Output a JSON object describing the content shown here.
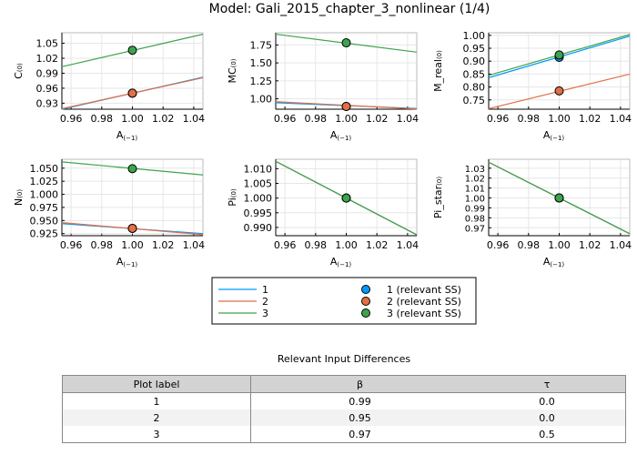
{
  "title": "Model: Gali_2015_chapter_3_nonlinear  (1/4)",
  "colors": {
    "1": "#009AFA",
    "2": "#E26F46",
    "3": "#3DA44D"
  },
  "chart_data": [
    {
      "type": "line",
      "ylabel": "C",
      "ylabel_sub": "(0)",
      "xlabel": "A",
      "xlabel_sub": "(−1)",
      "xlim": [
        0.954,
        1.046
      ],
      "ylim": [
        0.918,
        1.071
      ],
      "xticks": [
        "0.96",
        "0.98",
        "1.00",
        "1.02",
        "1.04"
      ],
      "yticks": [
        "0.93",
        "0.96",
        "0.99",
        "1.02",
        "1.05"
      ],
      "series": [
        {
          "name": "1",
          "x": [
            0.954,
            1.046
          ],
          "y": [
            0.918,
            0.982
          ],
          "ss": [
            1.0,
            0.95
          ]
        },
        {
          "name": "2",
          "x": [
            0.954,
            1.046
          ],
          "y": [
            0.919,
            0.981
          ],
          "ss": [
            1.0,
            0.95
          ]
        },
        {
          "name": "3",
          "x": [
            0.954,
            1.046
          ],
          "y": [
            1.003,
            1.068
          ],
          "ss": [
            1.0,
            1.036
          ]
        }
      ]
    },
    {
      "type": "line",
      "ylabel": "MC",
      "ylabel_sub": "(0)",
      "xlabel": "A",
      "xlabel_sub": "(−1)",
      "xlim": [
        0.954,
        1.046
      ],
      "ylim": [
        0.855,
        1.92
      ],
      "xticks": [
        "0.96",
        "0.98",
        "1.00",
        "1.02",
        "1.04"
      ],
      "yticks": [
        "1.00",
        "1.25",
        "1.50",
        "1.75"
      ],
      "series": [
        {
          "name": "1",
          "x": [
            0.954,
            1.046
          ],
          "y": [
            0.945,
            0.865
          ],
          "ss": [
            1.0,
            0.893
          ]
        },
        {
          "name": "2",
          "x": [
            0.954,
            1.046
          ],
          "y": [
            0.96,
            0.858
          ],
          "ss": [
            1.0,
            0.893
          ]
        },
        {
          "name": "3",
          "x": [
            0.954,
            1.046
          ],
          "y": [
            1.9,
            1.65
          ],
          "ss": [
            1.0,
            1.78
          ]
        }
      ]
    },
    {
      "type": "line",
      "ylabel": "M_real",
      "ylabel_sub": "(0)",
      "xlabel": "A",
      "xlabel_sub": "(−1)",
      "xlim": [
        0.954,
        1.046
      ],
      "ylim": [
        0.714,
        1.01
      ],
      "xticks": [
        "0.96",
        "0.98",
        "1.00",
        "1.02",
        "1.04"
      ],
      "yticks": [
        "0.75",
        "0.80",
        "0.85",
        "0.90",
        "0.95",
        "1.00"
      ],
      "series": [
        {
          "name": "1",
          "x": [
            0.954,
            1.046
          ],
          "y": [
            0.836,
            0.997
          ],
          "ss": [
            1.0,
            0.915
          ]
        },
        {
          "name": "2",
          "x": [
            0.954,
            1.046
          ],
          "y": [
            0.716,
            0.85
          ],
          "ss": [
            1.0,
            0.785
          ]
        },
        {
          "name": "3",
          "x": [
            0.954,
            1.046
          ],
          "y": [
            0.845,
            1.003
          ],
          "ss": [
            1.0,
            0.924
          ]
        }
      ]
    },
    {
      "type": "line",
      "ylabel": "N",
      "ylabel_sub": "(0)",
      "xlabel": "A",
      "xlabel_sub": "(−1)",
      "xlim": [
        0.954,
        1.046
      ],
      "ylim": [
        0.921,
        1.067
      ],
      "xticks": [
        "0.96",
        "0.98",
        "1.00",
        "1.02",
        "1.04"
      ],
      "yticks": [
        "0.925",
        "0.950",
        "0.975",
        "1.000",
        "1.025",
        "1.050"
      ],
      "series": [
        {
          "name": "1",
          "x": [
            0.954,
            1.046
          ],
          "y": [
            0.944,
            0.925
          ],
          "ss": [
            1.0,
            0.935
          ]
        },
        {
          "name": "2",
          "x": [
            0.954,
            1.046
          ],
          "y": [
            0.946,
            0.923
          ],
          "ss": [
            1.0,
            0.935
          ]
        },
        {
          "name": "3",
          "x": [
            0.954,
            1.046
          ],
          "y": [
            1.062,
            1.037
          ],
          "ss": [
            1.0,
            1.049
          ]
        }
      ]
    },
    {
      "type": "line",
      "ylabel": "Pi",
      "ylabel_sub": "(0)",
      "xlabel": "A",
      "xlabel_sub": "(−1)",
      "xlim": [
        0.954,
        1.046
      ],
      "ylim": [
        0.9872,
        1.0132
      ],
      "xticks": [
        "0.96",
        "0.98",
        "1.00",
        "1.02",
        "1.04"
      ],
      "yticks": [
        "0.990",
        "0.995",
        "1.000",
        "1.005",
        "1.010"
      ],
      "series": [
        {
          "name": "1",
          "x": [
            0.954,
            1.046
          ],
          "y": [
            1.0125,
            0.9875
          ],
          "ss": [
            1.0,
            1.0
          ]
        },
        {
          "name": "2",
          "x": [
            0.954,
            1.046
          ],
          "y": [
            1.0125,
            0.9875
          ],
          "ss": [
            1.0,
            1.0
          ]
        },
        {
          "name": "3",
          "x": [
            0.954,
            1.046
          ],
          "y": [
            1.0125,
            0.9875
          ],
          "ss": [
            1.0,
            1.0
          ]
        }
      ]
    },
    {
      "type": "line",
      "ylabel": "Pi_star",
      "ylabel_sub": "(0)",
      "xlabel": "A",
      "xlabel_sub": "(−1)",
      "xlim": [
        0.954,
        1.046
      ],
      "ylim": [
        0.962,
        1.039
      ],
      "xticks": [
        "0.96",
        "0.98",
        "1.00",
        "1.02",
        "1.04"
      ],
      "yticks": [
        "0.97",
        "0.98",
        "0.99",
        "1.00",
        "1.01",
        "1.02",
        "1.03"
      ],
      "series": [
        {
          "name": "1",
          "x": [
            0.954,
            1.046
          ],
          "y": [
            1.036,
            0.964
          ],
          "ss": [
            1.0,
            1.0
          ]
        },
        {
          "name": "2",
          "x": [
            0.954,
            1.046
          ],
          "y": [
            1.036,
            0.964
          ],
          "ss": [
            1.0,
            1.0
          ]
        },
        {
          "name": "3",
          "x": [
            0.954,
            1.046
          ],
          "y": [
            1.036,
            0.964
          ],
          "ss": [
            1.0,
            1.0
          ]
        }
      ]
    }
  ],
  "legend": {
    "placement": "bottom-center",
    "lines": [
      "1",
      "2",
      "3"
    ],
    "markers": [
      "1 (relevant SS)",
      "2 (relevant SS)",
      "3 (relevant SS)"
    ]
  },
  "table": {
    "title": "Relevant Input Differences",
    "headers": [
      "Plot label",
      "β",
      "τ"
    ],
    "rows": [
      [
        "1",
        "0.99",
        "0.0"
      ],
      [
        "2",
        "0.95",
        "0.0"
      ],
      [
        "3",
        "0.97",
        "0.5"
      ]
    ]
  }
}
